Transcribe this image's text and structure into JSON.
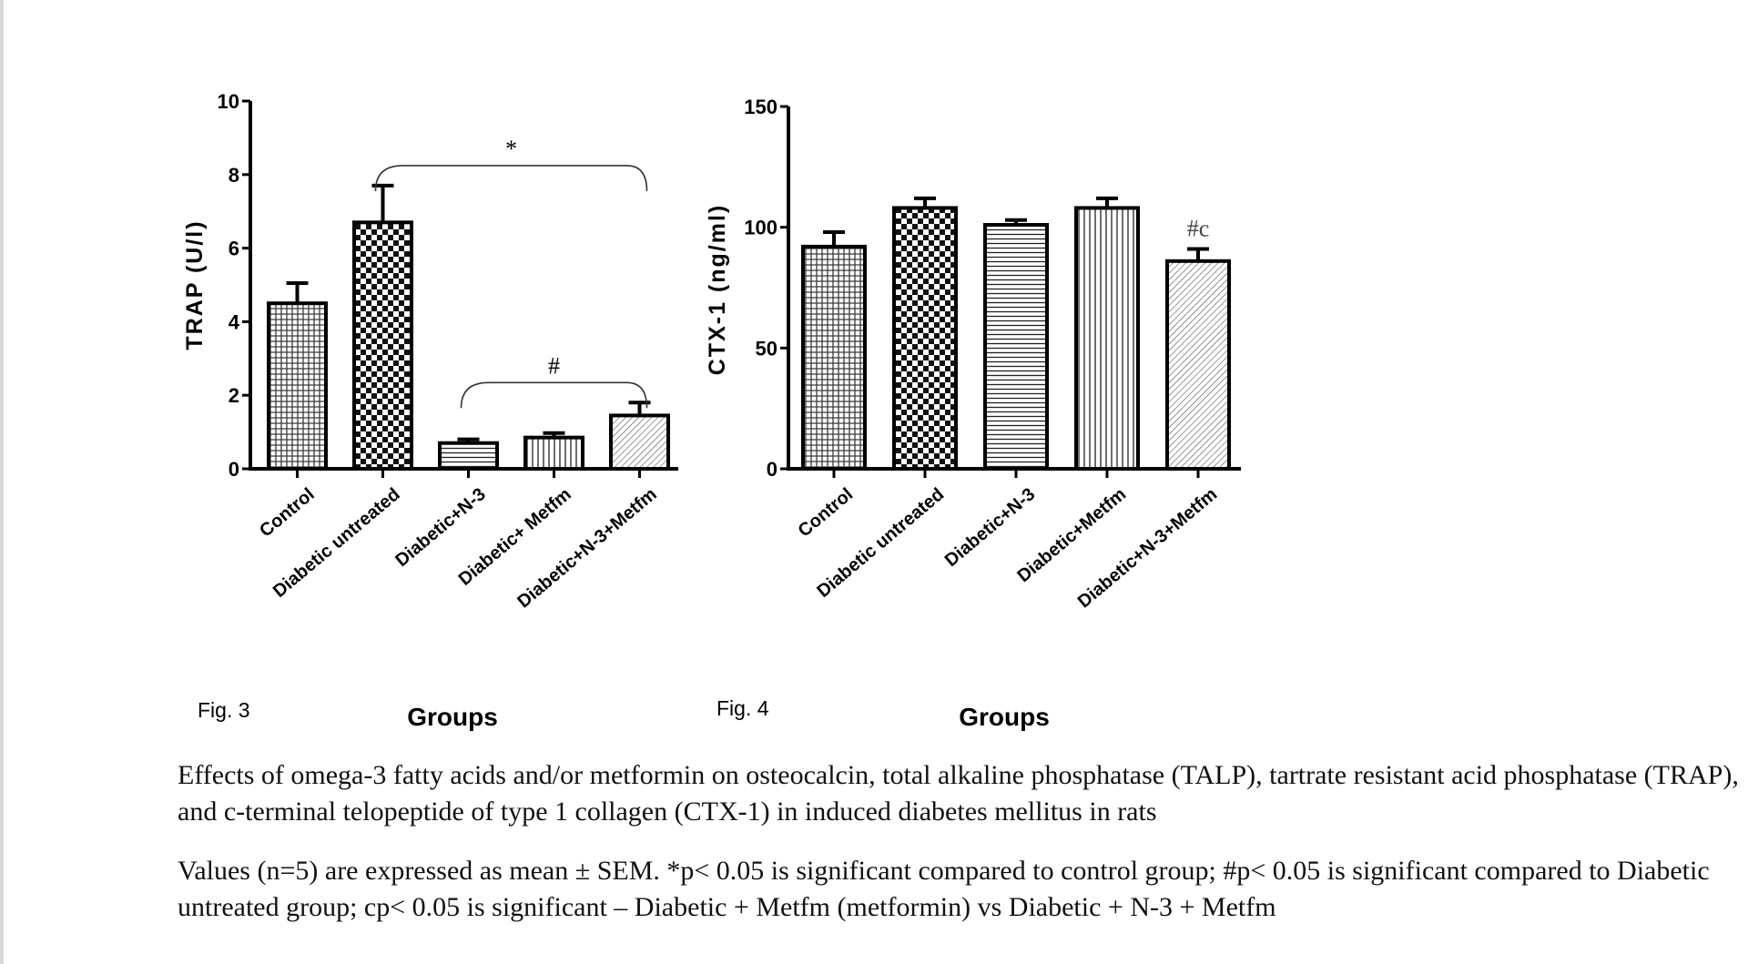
{
  "chart_data": [
    {
      "type": "bar",
      "figure_label": "Fig. 3",
      "xlabel": "Groups",
      "ylabel": "TRAP (U/l)",
      "ylim": [
        0,
        10
      ],
      "yticks": [
        "0",
        "2",
        "4",
        "6",
        "8",
        "10"
      ],
      "categories": [
        "Control",
        "Diabetic untreated",
        "Diabetic+N-3",
        "Diabetic+ Metfm",
        "Diabetic+N-3+Metfm"
      ],
      "values": [
        4.5,
        6.7,
        0.7,
        0.85,
        1.45
      ],
      "errors": [
        0.55,
        1.0,
        0.1,
        0.12,
        0.35
      ],
      "patterns": [
        "grid",
        "checker",
        "hlines",
        "vlines",
        "diag"
      ],
      "annotations": [
        {
          "text": "*",
          "from": 1,
          "to": 4
        },
        {
          "text": "#",
          "from": 2,
          "to": 4
        }
      ]
    },
    {
      "type": "bar",
      "figure_label": "Fig. 4",
      "xlabel": "Groups",
      "ylabel": "CTX-1 (ng/ml)",
      "ylim": [
        0,
        150
      ],
      "yticks": [
        "0",
        "50",
        "100",
        "150"
      ],
      "categories": [
        "Control",
        "Diabetic untreated",
        "Diabetic+N-3",
        "Diabetic+Metfm",
        "Diabetic+N-3+Metfm"
      ],
      "values": [
        92,
        108,
        101,
        108,
        86
      ],
      "errors": [
        6,
        4,
        2,
        4,
        5
      ],
      "patterns": [
        "grid",
        "checker",
        "hlines",
        "vlines",
        "diag"
      ],
      "annotations": [
        {
          "text": "#c",
          "bar": 4
        }
      ]
    }
  ],
  "caption": {
    "title": "Effects of omega-3 fatty acids and/or metformin on osteocalcin, total alkaline phosphatase (TALP), tartrate resistant acid phosphatase (TRAP), and c-terminal telopeptide of type 1 collagen (CTX-1) in induced diabetes mellitus in rats",
    "notes": "Values (n=5) are expressed as mean ± SEM. *p< 0.05 is significant compared to control group; #p< 0.05 is significant compared to Diabetic untreated group; cp< 0.05 is significant – Diabetic + Metfm (metformin) vs Diabetic + N-3 + Metfm"
  }
}
